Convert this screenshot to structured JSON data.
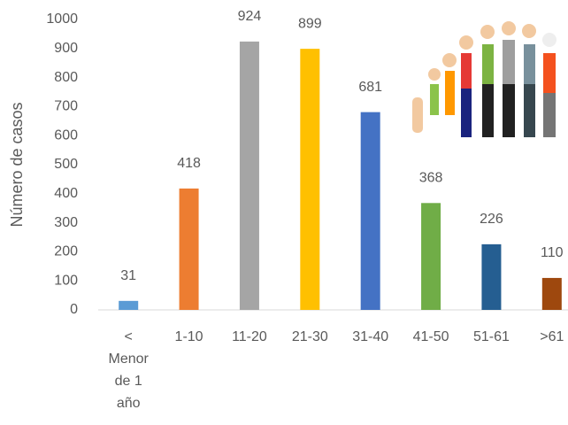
{
  "chart_data": {
    "type": "bar",
    "y_label": "Número de casos",
    "categories": [
      "< Menor de 1 año",
      "1-10",
      "11-20",
      "21-30",
      "31-40",
      "41-50",
      "51-61",
      ">61"
    ],
    "values": [
      31,
      418,
      924,
      899,
      681,
      368,
      226,
      110
    ],
    "colors": [
      "#5B9BD5",
      "#ED7D31",
      "#A5A5A5",
      "#FFC000",
      "#4472C4",
      "#70AD47",
      "#255E91",
      "#9E480E"
    ],
    "ylim": [
      0,
      1000
    ],
    "yticks": [
      0,
      100,
      200,
      300,
      400,
      500,
      600,
      700,
      800,
      900,
      1000
    ],
    "grid": false
  }
}
